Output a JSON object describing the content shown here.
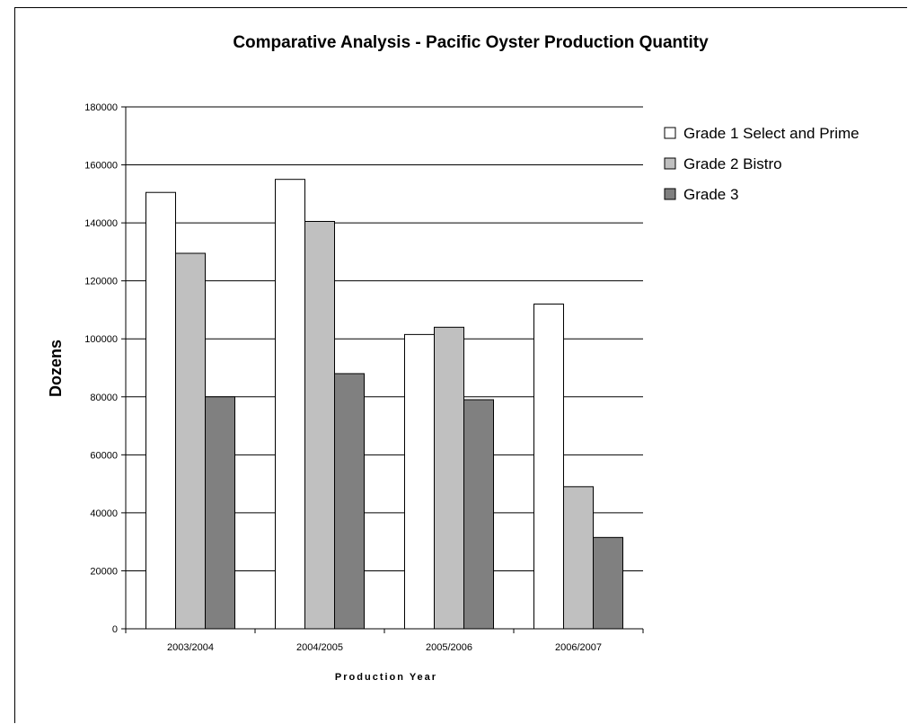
{
  "chart_data": {
    "type": "bar",
    "title": "Comparative Analysis - Pacific Oyster Production Quantity",
    "xlabel": "Production Year",
    "ylabel": "Dozens",
    "categories": [
      "2003/2004",
      "2004/2005",
      "2005/2006",
      "2006/2007"
    ],
    "ylim": [
      0,
      180000
    ],
    "yticks": [
      0,
      20000,
      40000,
      60000,
      80000,
      100000,
      120000,
      140000,
      160000,
      180000
    ],
    "grid": true,
    "legend_position": "right",
    "series": [
      {
        "name": "Grade 1 Select and Prime",
        "color": "#ffffff",
        "values": [
          150500,
          155000,
          101500,
          112000
        ]
      },
      {
        "name": "Grade 2 Bistro",
        "color": "#c0c0c0",
        "values": [
          129500,
          140500,
          104000,
          49000
        ]
      },
      {
        "name": "Grade 3",
        "color": "#808080",
        "values": [
          80000,
          88000,
          79000,
          31500
        ]
      }
    ]
  }
}
